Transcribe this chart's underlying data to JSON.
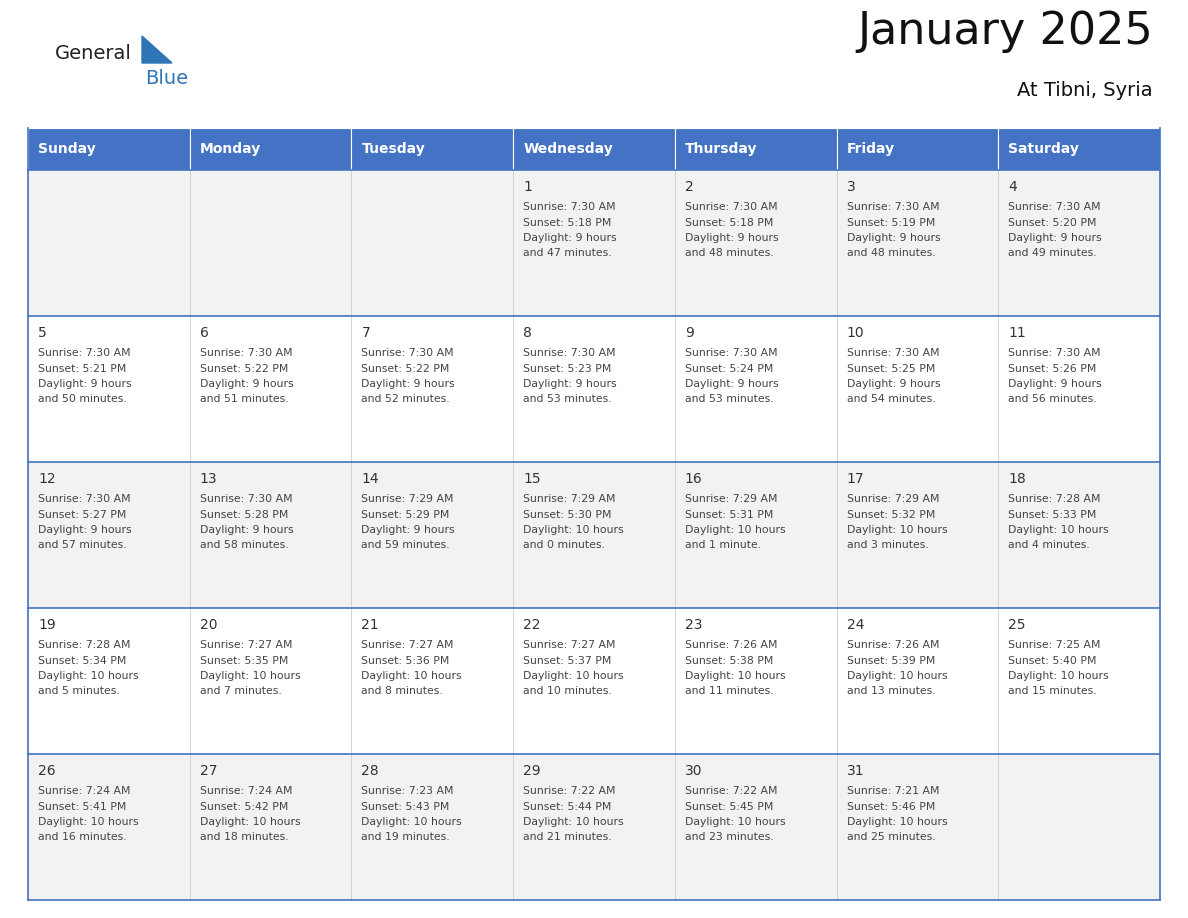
{
  "title": "January 2025",
  "subtitle": "At Tibni, Syria",
  "header_bg": "#4472C4",
  "header_text_color": "#FFFFFF",
  "cell_bg_odd": "#F2F2F2",
  "cell_bg_even": "#FFFFFF",
  "grid_line_color": "#4472C4",
  "days_of_week": [
    "Sunday",
    "Monday",
    "Tuesday",
    "Wednesday",
    "Thursday",
    "Friday",
    "Saturday"
  ],
  "logo_general_color": "#222222",
  "logo_blue_color": "#2E75B6",
  "calendar_data": [
    [
      {
        "day": "",
        "sunrise": "",
        "sunset": "",
        "daylight_line1": "",
        "daylight_line2": ""
      },
      {
        "day": "",
        "sunrise": "",
        "sunset": "",
        "daylight_line1": "",
        "daylight_line2": ""
      },
      {
        "day": "",
        "sunrise": "",
        "sunset": "",
        "daylight_line1": "",
        "daylight_line2": ""
      },
      {
        "day": "1",
        "sunrise": "Sunrise: 7:30 AM",
        "sunset": "Sunset: 5:18 PM",
        "daylight_line1": "Daylight: 9 hours",
        "daylight_line2": "and 47 minutes."
      },
      {
        "day": "2",
        "sunrise": "Sunrise: 7:30 AM",
        "sunset": "Sunset: 5:18 PM",
        "daylight_line1": "Daylight: 9 hours",
        "daylight_line2": "and 48 minutes."
      },
      {
        "day": "3",
        "sunrise": "Sunrise: 7:30 AM",
        "sunset": "Sunset: 5:19 PM",
        "daylight_line1": "Daylight: 9 hours",
        "daylight_line2": "and 48 minutes."
      },
      {
        "day": "4",
        "sunrise": "Sunrise: 7:30 AM",
        "sunset": "Sunset: 5:20 PM",
        "daylight_line1": "Daylight: 9 hours",
        "daylight_line2": "and 49 minutes."
      }
    ],
    [
      {
        "day": "5",
        "sunrise": "Sunrise: 7:30 AM",
        "sunset": "Sunset: 5:21 PM",
        "daylight_line1": "Daylight: 9 hours",
        "daylight_line2": "and 50 minutes."
      },
      {
        "day": "6",
        "sunrise": "Sunrise: 7:30 AM",
        "sunset": "Sunset: 5:22 PM",
        "daylight_line1": "Daylight: 9 hours",
        "daylight_line2": "and 51 minutes."
      },
      {
        "day": "7",
        "sunrise": "Sunrise: 7:30 AM",
        "sunset": "Sunset: 5:22 PM",
        "daylight_line1": "Daylight: 9 hours",
        "daylight_line2": "and 52 minutes."
      },
      {
        "day": "8",
        "sunrise": "Sunrise: 7:30 AM",
        "sunset": "Sunset: 5:23 PM",
        "daylight_line1": "Daylight: 9 hours",
        "daylight_line2": "and 53 minutes."
      },
      {
        "day": "9",
        "sunrise": "Sunrise: 7:30 AM",
        "sunset": "Sunset: 5:24 PM",
        "daylight_line1": "Daylight: 9 hours",
        "daylight_line2": "and 53 minutes."
      },
      {
        "day": "10",
        "sunrise": "Sunrise: 7:30 AM",
        "sunset": "Sunset: 5:25 PM",
        "daylight_line1": "Daylight: 9 hours",
        "daylight_line2": "and 54 minutes."
      },
      {
        "day": "11",
        "sunrise": "Sunrise: 7:30 AM",
        "sunset": "Sunset: 5:26 PM",
        "daylight_line1": "Daylight: 9 hours",
        "daylight_line2": "and 56 minutes."
      }
    ],
    [
      {
        "day": "12",
        "sunrise": "Sunrise: 7:30 AM",
        "sunset": "Sunset: 5:27 PM",
        "daylight_line1": "Daylight: 9 hours",
        "daylight_line2": "and 57 minutes."
      },
      {
        "day": "13",
        "sunrise": "Sunrise: 7:30 AM",
        "sunset": "Sunset: 5:28 PM",
        "daylight_line1": "Daylight: 9 hours",
        "daylight_line2": "and 58 minutes."
      },
      {
        "day": "14",
        "sunrise": "Sunrise: 7:29 AM",
        "sunset": "Sunset: 5:29 PM",
        "daylight_line1": "Daylight: 9 hours",
        "daylight_line2": "and 59 minutes."
      },
      {
        "day": "15",
        "sunrise": "Sunrise: 7:29 AM",
        "sunset": "Sunset: 5:30 PM",
        "daylight_line1": "Daylight: 10 hours",
        "daylight_line2": "and 0 minutes."
      },
      {
        "day": "16",
        "sunrise": "Sunrise: 7:29 AM",
        "sunset": "Sunset: 5:31 PM",
        "daylight_line1": "Daylight: 10 hours",
        "daylight_line2": "and 1 minute."
      },
      {
        "day": "17",
        "sunrise": "Sunrise: 7:29 AM",
        "sunset": "Sunset: 5:32 PM",
        "daylight_line1": "Daylight: 10 hours",
        "daylight_line2": "and 3 minutes."
      },
      {
        "day": "18",
        "sunrise": "Sunrise: 7:28 AM",
        "sunset": "Sunset: 5:33 PM",
        "daylight_line1": "Daylight: 10 hours",
        "daylight_line2": "and 4 minutes."
      }
    ],
    [
      {
        "day": "19",
        "sunrise": "Sunrise: 7:28 AM",
        "sunset": "Sunset: 5:34 PM",
        "daylight_line1": "Daylight: 10 hours",
        "daylight_line2": "and 5 minutes."
      },
      {
        "day": "20",
        "sunrise": "Sunrise: 7:27 AM",
        "sunset": "Sunset: 5:35 PM",
        "daylight_line1": "Daylight: 10 hours",
        "daylight_line2": "and 7 minutes."
      },
      {
        "day": "21",
        "sunrise": "Sunrise: 7:27 AM",
        "sunset": "Sunset: 5:36 PM",
        "daylight_line1": "Daylight: 10 hours",
        "daylight_line2": "and 8 minutes."
      },
      {
        "day": "22",
        "sunrise": "Sunrise: 7:27 AM",
        "sunset": "Sunset: 5:37 PM",
        "daylight_line1": "Daylight: 10 hours",
        "daylight_line2": "and 10 minutes."
      },
      {
        "day": "23",
        "sunrise": "Sunrise: 7:26 AM",
        "sunset": "Sunset: 5:38 PM",
        "daylight_line1": "Daylight: 10 hours",
        "daylight_line2": "and 11 minutes."
      },
      {
        "day": "24",
        "sunrise": "Sunrise: 7:26 AM",
        "sunset": "Sunset: 5:39 PM",
        "daylight_line1": "Daylight: 10 hours",
        "daylight_line2": "and 13 minutes."
      },
      {
        "day": "25",
        "sunrise": "Sunrise: 7:25 AM",
        "sunset": "Sunset: 5:40 PM",
        "daylight_line1": "Daylight: 10 hours",
        "daylight_line2": "and 15 minutes."
      }
    ],
    [
      {
        "day": "26",
        "sunrise": "Sunrise: 7:24 AM",
        "sunset": "Sunset: 5:41 PM",
        "daylight_line1": "Daylight: 10 hours",
        "daylight_line2": "and 16 minutes."
      },
      {
        "day": "27",
        "sunrise": "Sunrise: 7:24 AM",
        "sunset": "Sunset: 5:42 PM",
        "daylight_line1": "Daylight: 10 hours",
        "daylight_line2": "and 18 minutes."
      },
      {
        "day": "28",
        "sunrise": "Sunrise: 7:23 AM",
        "sunset": "Sunset: 5:43 PM",
        "daylight_line1": "Daylight: 10 hours",
        "daylight_line2": "and 19 minutes."
      },
      {
        "day": "29",
        "sunrise": "Sunrise: 7:22 AM",
        "sunset": "Sunset: 5:44 PM",
        "daylight_line1": "Daylight: 10 hours",
        "daylight_line2": "and 21 minutes."
      },
      {
        "day": "30",
        "sunrise": "Sunrise: 7:22 AM",
        "sunset": "Sunset: 5:45 PM",
        "daylight_line1": "Daylight: 10 hours",
        "daylight_line2": "and 23 minutes."
      },
      {
        "day": "31",
        "sunrise": "Sunrise: 7:21 AM",
        "sunset": "Sunset: 5:46 PM",
        "daylight_line1": "Daylight: 10 hours",
        "daylight_line2": "and 25 minutes."
      },
      {
        "day": "",
        "sunrise": "",
        "sunset": "",
        "daylight_line1": "",
        "daylight_line2": ""
      }
    ]
  ]
}
